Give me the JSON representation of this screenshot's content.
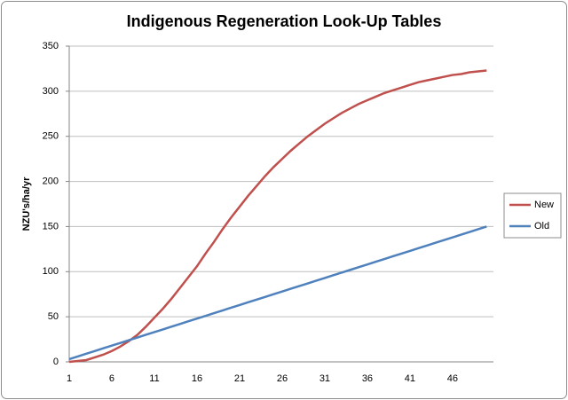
{
  "chart_data": {
    "type": "line",
    "title": "Indigenous Regeneration Look-Up Tables",
    "y_label": "NZU's/ha/yr",
    "categories": [
      "1",
      null,
      null,
      null,
      null,
      "6",
      null,
      null,
      null,
      null,
      "11",
      null,
      null,
      null,
      null,
      "16",
      null,
      null,
      null,
      null,
      "21",
      null,
      null,
      null,
      null,
      "26",
      null,
      null,
      null,
      null,
      "31",
      null,
      null,
      null,
      null,
      "36",
      null,
      null,
      null,
      null,
      "41",
      null,
      null,
      null,
      null,
      "46",
      null,
      null,
      null,
      null
    ],
    "series": [
      {
        "name": "New",
        "color": "#c0504d",
        "values": [
          0,
          1,
          2,
          5,
          8,
          12,
          17,
          23,
          30,
          39,
          49,
          59,
          70,
          82,
          94,
          106,
          120,
          133,
          147,
          160,
          172,
          184,
          195,
          206,
          216,
          225,
          234,
          242,
          250,
          257,
          264,
          270,
          276,
          281,
          286,
          290,
          294,
          298,
          301,
          304,
          307,
          310,
          312,
          314,
          316,
          318,
          319,
          321,
          322,
          323
        ]
      },
      {
        "name": "Old",
        "color": "#4f81bd",
        "values": [
          3,
          6,
          9,
          12,
          15,
          18,
          21,
          24,
          27,
          30,
          33,
          36,
          39,
          42,
          45,
          48,
          51,
          54,
          57,
          60,
          63,
          66,
          69,
          72,
          75,
          78,
          81,
          84,
          87,
          90,
          93,
          96,
          99,
          102,
          105,
          108,
          111,
          114,
          117,
          120,
          123,
          126,
          129,
          132,
          135,
          138,
          141,
          144,
          147,
          150
        ]
      }
    ],
    "ylim": [
      0,
      350
    ],
    "yticks": [
      0,
      50,
      100,
      150,
      200,
      250,
      300,
      350
    ],
    "grid": true,
    "legend": "right"
  }
}
